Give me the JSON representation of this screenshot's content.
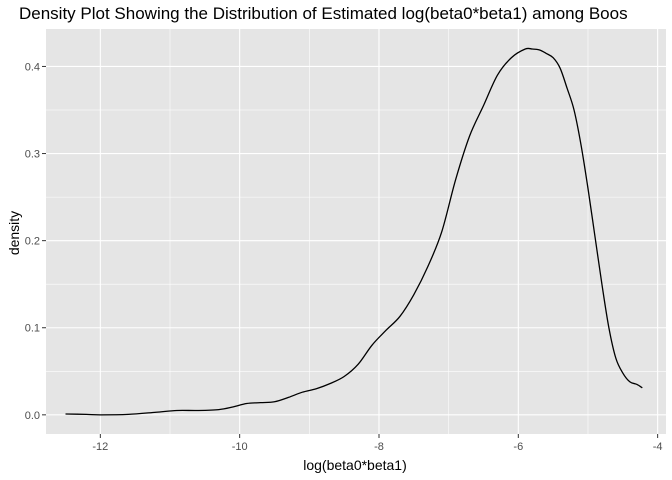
{
  "chart_data": {
    "type": "line",
    "title": "Density Plot Showing the Distribution of Estimated log(beta0*beta1) among Boos",
    "xlabel": "log(beta0*beta1)",
    "ylabel": "density",
    "xlim": [
      -12.78,
      -3.88
    ],
    "ylim": [
      -0.022,
      0.443
    ],
    "x_ticks": [
      -12,
      -10,
      -8,
      -6,
      -4
    ],
    "x_tick_labels": [
      "-12",
      "-10",
      "-8",
      "-6",
      "-4"
    ],
    "y_ticks": [
      0.0,
      0.1,
      0.2,
      0.3,
      0.4
    ],
    "y_tick_labels": [
      "0.0",
      "0.1",
      "0.2",
      "0.3",
      "0.4"
    ],
    "grid": true,
    "background": "#e5e5e5",
    "gridline_color": "#ffffff",
    "line_color": "#000000",
    "series": [
      {
        "x": [
          -12.5,
          -12.2,
          -12.0,
          -11.6,
          -11.2,
          -10.9,
          -10.6,
          -10.3,
          -10.1,
          -9.9,
          -9.7,
          -9.5,
          -9.3,
          -9.1,
          -8.9,
          -8.7,
          -8.5,
          -8.3,
          -8.1,
          -7.9,
          -7.7,
          -7.5,
          -7.3,
          -7.1,
          -6.9,
          -6.7,
          -6.5,
          -6.3,
          -6.1,
          -5.9,
          -5.8,
          -5.7,
          -5.6,
          -5.5,
          -5.4,
          -5.3,
          -5.2,
          -5.1,
          -5.0,
          -4.9,
          -4.8,
          -4.7,
          -4.6,
          -4.5,
          -4.4,
          -4.3,
          -4.22
        ],
        "values": [
          0.001,
          0.0005,
          0.0,
          0.0005,
          0.003,
          0.005,
          0.005,
          0.006,
          0.009,
          0.013,
          0.014,
          0.015,
          0.02,
          0.026,
          0.03,
          0.036,
          0.044,
          0.058,
          0.08,
          0.097,
          0.113,
          0.138,
          0.17,
          0.21,
          0.27,
          0.32,
          0.355,
          0.39,
          0.41,
          0.42,
          0.42,
          0.419,
          0.415,
          0.41,
          0.398,
          0.375,
          0.35,
          0.31,
          0.26,
          0.205,
          0.15,
          0.1,
          0.065,
          0.048,
          0.038,
          0.035,
          0.031
        ]
      }
    ]
  }
}
